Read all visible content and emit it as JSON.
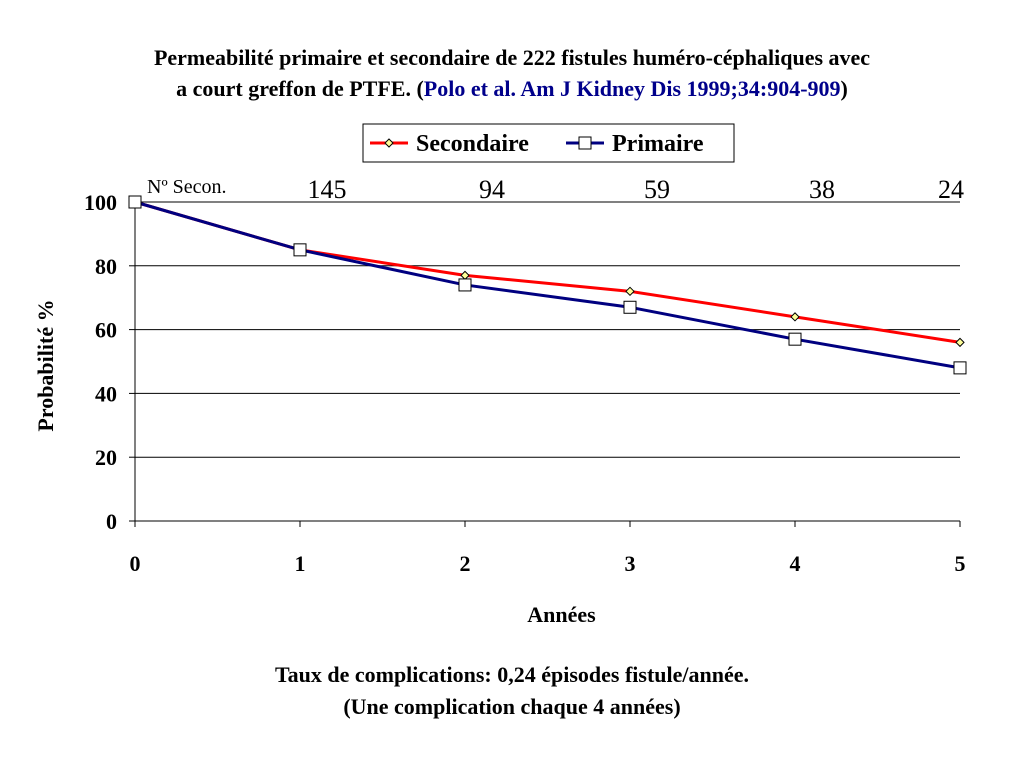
{
  "title": {
    "line1": "Permeabilité primaire et secondaire de 222 fistules huméro-céphaliques avec",
    "line2_prefix": "a court greffon de PTFE. (",
    "reference": "Polo et al. Am J Kidney Dis 1999;34:904-909",
    "line2_suffix": ")"
  },
  "colors": {
    "secondaire": "#ff0000",
    "primaire": "#000080",
    "reference": "#00008b"
  },
  "chart_data": {
    "type": "line",
    "x": [
      0,
      1,
      2,
      3,
      4,
      5
    ],
    "series": [
      {
        "name": "Secondaire",
        "values": [
          100,
          85,
          77,
          72,
          64,
          56
        ],
        "color": "#ff0000",
        "marker": "diamond"
      },
      {
        "name": "Primaire",
        "values": [
          100,
          85,
          74,
          67,
          57,
          48
        ],
        "color": "#000080",
        "marker": "square"
      }
    ],
    "xlabel": "Années",
    "ylabel": "Probabilité   %",
    "xlim": [
      0,
      5
    ],
    "ylim": [
      0,
      100
    ],
    "yticks": [
      0,
      20,
      40,
      60,
      80,
      100
    ],
    "xticks": [
      0,
      1,
      2,
      3,
      4,
      5
    ],
    "grid": "horizontal",
    "legend_position": "top-right",
    "at_risk": {
      "label": "Nº Secon.",
      "x": [
        1,
        2,
        3,
        4,
        5
      ],
      "counts": [
        "145",
        "94",
        "59",
        "38",
        "24"
      ]
    }
  },
  "footnote": {
    "line1": "Taux de complications: 0,24 épisodes fistule/année.",
    "line2": "(Une complication chaque 4 années)"
  }
}
